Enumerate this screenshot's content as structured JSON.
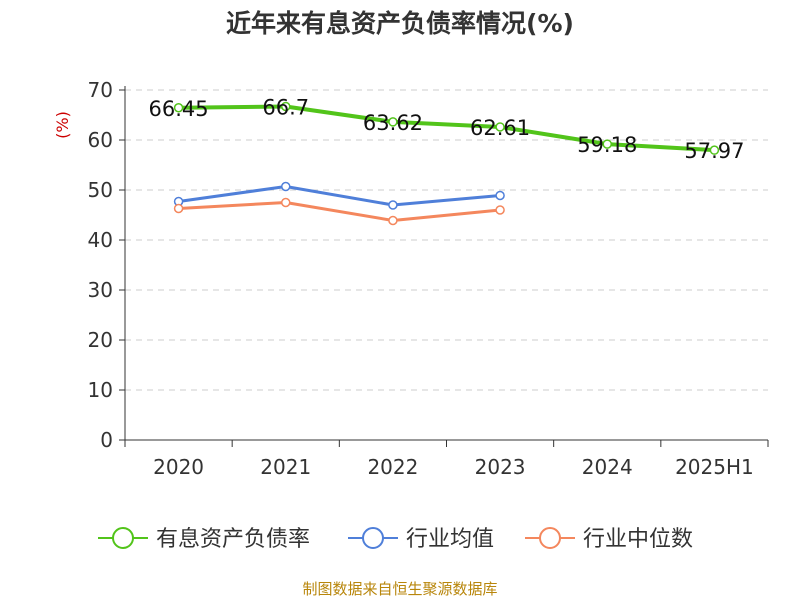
{
  "colors": {
    "series_1": "#52c41a",
    "series_2": "#4f7fd9",
    "series_3": "#f4875d",
    "axis_text": "#333333",
    "grid": "#cccccc",
    "ylabel": "#cc0000",
    "source": "#b8860b"
  },
  "chart_data": {
    "type": "line",
    "title": "近年来有息资产负债率情况(%)",
    "xlabel": "",
    "ylabel": "(%)",
    "categories": [
      "2020",
      "2021",
      "2022",
      "2023",
      "2024",
      "2025H1"
    ],
    "ylim": [
      0,
      70
    ],
    "yticks": [
      0,
      10,
      20,
      30,
      40,
      50,
      60,
      70
    ],
    "grid": true,
    "legend_position": "bottom",
    "series": [
      {
        "name": "有息资产负债率",
        "values": [
          66.45,
          66.7,
          63.62,
          62.61,
          59.18,
          57.97
        ],
        "labels": [
          "66.45",
          "66.7",
          "63.62",
          "62.61",
          "59.18",
          "57.97"
        ]
      },
      {
        "name": "行业均值",
        "values": [
          47.7,
          50.7,
          47.0,
          48.9,
          null,
          null
        ]
      },
      {
        "name": "行业中位数",
        "values": [
          46.3,
          47.5,
          43.9,
          46.0,
          null,
          null
        ]
      }
    ]
  },
  "source_note": "制图数据来自恒生聚源数据库"
}
